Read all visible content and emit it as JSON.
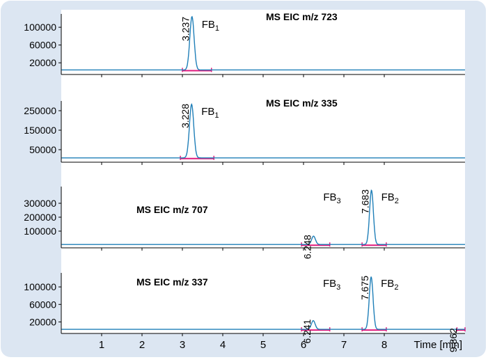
{
  "chart_data": {
    "type": "line",
    "xlabel": "Time [min]",
    "xlim": [
      0,
      10
    ],
    "x_ticks": [
      1,
      2,
      3,
      4,
      5,
      6,
      7,
      8
    ],
    "colors": {
      "background_panel": "#dce6f2",
      "trace": "#1f7fb8",
      "integration": "#e0197c",
      "axis": "#000000"
    },
    "panels": [
      {
        "title": "MS EIC m/z 723",
        "y_ticks": [
          "100000",
          "60000",
          "20000"
        ],
        "y_values": [
          100000,
          60000,
          20000
        ],
        "ylim": [
          0,
          130000
        ],
        "baseline": 4000,
        "peaks": [
          {
            "rt": 3.237,
            "height": 120000,
            "width": 0.09,
            "label": "3.237",
            "name": "FB",
            "sub": "1",
            "integration": [
              3.0,
              3.72
            ]
          }
        ]
      },
      {
        "title": "MS EIC m/z 335",
        "y_ticks": [
          "250000",
          "150000",
          "50000"
        ],
        "y_values": [
          250000,
          150000,
          50000
        ],
        "ylim": [
          0,
          300000
        ],
        "baseline": 8000,
        "peaks": [
          {
            "rt": 3.228,
            "height": 275000,
            "width": 0.09,
            "label": "3.228",
            "name": "FB",
            "sub": "1",
            "integration": [
              2.95,
              3.78
            ]
          }
        ]
      },
      {
        "title": "MS EIC m/z 707",
        "y_ticks": [
          "300000",
          "200000",
          "100000"
        ],
        "y_values": [
          300000,
          200000,
          100000
        ],
        "ylim": [
          0,
          420000
        ],
        "baseline": 4000,
        "peaks": [
          {
            "rt": 6.248,
            "height": 60000,
            "width": 0.08,
            "label": "6.248",
            "name": "FB",
            "sub": "3",
            "integration": [
              5.95,
              6.65
            ]
          },
          {
            "rt": 7.683,
            "height": 390000,
            "width": 0.08,
            "label": "7.683",
            "name": "FB",
            "sub": "2",
            "integration": [
              7.45,
              8.05
            ]
          }
        ]
      },
      {
        "title": "MS EIC m/z 337",
        "y_ticks": [
          "100000",
          "60000",
          "20000"
        ],
        "y_values": [
          100000,
          60000,
          20000
        ],
        "ylim": [
          0,
          132000
        ],
        "baseline": 3000,
        "peaks": [
          {
            "rt": 6.241,
            "height": 20000,
            "width": 0.08,
            "label": "6.241",
            "name": "FB",
            "sub": "3",
            "integration": [
              5.95,
              6.65
            ]
          },
          {
            "rt": 7.675,
            "height": 120000,
            "width": 0.08,
            "label": "7.675",
            "name": "FB",
            "sub": "2",
            "integration": [
              7.45,
              8.05
            ]
          },
          {
            "rt": 9.862,
            "height": 0,
            "width": 0.05,
            "label": "9.862",
            "name": "",
            "sub": "",
            "integration": [
              9.8,
              10
            ]
          }
        ]
      }
    ]
  }
}
